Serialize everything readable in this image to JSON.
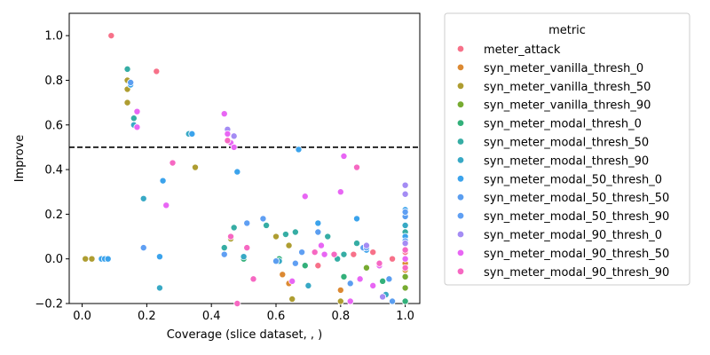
{
  "chart_data": {
    "type": "scatter",
    "xlabel": "Coverage (slice dataset, , )",
    "ylabel": "Improve",
    "xlim": [
      -0.04,
      1.045
    ],
    "ylim": [
      -0.2,
      1.1
    ],
    "xticks": [
      0.0,
      0.2,
      0.4,
      0.6,
      0.8,
      1.0
    ],
    "yticks": [
      -0.2,
      0.0,
      0.2,
      0.4,
      0.6,
      0.8,
      1.0
    ],
    "xtick_labels": [
      "0.0",
      "0.2",
      "0.4",
      "0.6",
      "0.8",
      "1.0"
    ],
    "ytick_labels": [
      "−0.2",
      "0.0",
      "0.2",
      "0.4",
      "0.6",
      "0.8",
      "1.0"
    ],
    "reference_line": {
      "y": 0.5,
      "style": "dashed",
      "color": "#000000"
    },
    "legend": {
      "title": "metric",
      "placement": "outside-right"
    },
    "series": [
      {
        "name": "meter_attack",
        "color": "#f77189",
        "points": [
          [
            0.09,
            1.0
          ],
          [
            0.23,
            0.84
          ],
          [
            0.73,
            -0.03
          ],
          [
            0.84,
            0.02
          ],
          [
            0.9,
            0.03
          ],
          [
            0.96,
            0.0
          ],
          [
            1.0,
            0.03
          ],
          [
            1.0,
            -0.02
          ]
        ]
      },
      {
        "name": "syn_meter_vanilla_thresh_0",
        "color": "#dc8932",
        "points": [
          [
            0.62,
            -0.07
          ],
          [
            0.64,
            -0.11
          ],
          [
            0.8,
            -0.14
          ],
          [
            1.0,
            -0.02
          ],
          [
            1.0,
            -0.05
          ],
          [
            1.0,
            -0.13
          ]
        ]
      },
      {
        "name": "syn_meter_vanilla_thresh_50",
        "color": "#ae9d31",
        "points": [
          [
            0.01,
            0.0
          ],
          [
            0.03,
            0.0
          ],
          [
            0.14,
            0.8
          ],
          [
            0.14,
            0.76
          ],
          [
            0.14,
            0.7
          ],
          [
            0.35,
            0.41
          ],
          [
            0.46,
            0.09
          ],
          [
            0.6,
            0.1
          ],
          [
            0.64,
            0.06
          ],
          [
            0.65,
            -0.18
          ],
          [
            0.8,
            -0.19
          ]
        ]
      },
      {
        "name": "syn_meter_vanilla_thresh_90",
        "color": "#77ab31",
        "points": [
          [
            1.0,
            -0.08
          ],
          [
            1.0,
            -0.13
          ],
          [
            0.88,
            -0.04
          ]
        ]
      },
      {
        "name": "syn_meter_modal_thresh_0",
        "color": "#33b07a",
        "points": [
          [
            0.5,
            0.0
          ],
          [
            0.61,
            0.0
          ],
          [
            0.69,
            -0.03
          ],
          [
            0.81,
            -0.08
          ],
          [
            0.93,
            -0.1
          ],
          [
            1.0,
            -0.19
          ]
        ]
      },
      {
        "name": "syn_meter_modal_thresh_50",
        "color": "#36ada4",
        "points": [
          [
            0.14,
            0.85
          ],
          [
            0.15,
            0.78
          ],
          [
            0.16,
            0.63
          ],
          [
            0.44,
            0.05
          ],
          [
            0.47,
            0.14
          ],
          [
            0.57,
            0.15
          ],
          [
            0.63,
            0.11
          ],
          [
            0.66,
            0.12
          ],
          [
            0.76,
            0.1
          ],
          [
            0.79,
            0.0
          ],
          [
            0.81,
            0.02
          ],
          [
            0.85,
            0.07
          ],
          [
            0.88,
            0.06
          ],
          [
            1.0,
            0.12
          ],
          [
            1.0,
            0.09
          ]
        ]
      },
      {
        "name": "syn_meter_modal_thresh_90",
        "color": "#38a9c5",
        "points": [
          [
            0.16,
            0.6
          ],
          [
            0.19,
            0.27
          ],
          [
            0.24,
            -0.13
          ],
          [
            0.33,
            0.56
          ],
          [
            0.5,
            0.01
          ],
          [
            0.61,
            -0.01
          ],
          [
            0.7,
            -0.12
          ],
          [
            0.87,
            0.05
          ],
          [
            0.94,
            -0.16
          ],
          [
            1.0,
            0.2
          ],
          [
            1.0,
            0.15
          ]
        ]
      },
      {
        "name": "syn_meter_modal_50_thresh_0",
        "color": "#3ba3ec",
        "points": [
          [
            0.06,
            0.0
          ],
          [
            0.07,
            0.0
          ],
          [
            0.08,
            0.0
          ],
          [
            0.15,
            0.78
          ],
          [
            0.24,
            0.01
          ],
          [
            0.25,
            0.35
          ],
          [
            0.34,
            0.56
          ],
          [
            0.48,
            0.39
          ],
          [
            0.67,
            0.49
          ],
          [
            0.73,
            0.16
          ],
          [
            0.85,
            0.18
          ],
          [
            0.88,
            0.04
          ],
          [
            1.0,
            0.22
          ],
          [
            1.0,
            0.1
          ]
        ]
      },
      {
        "name": "syn_meter_modal_50_thresh_50",
        "color": "#5b9ef0",
        "points": [
          [
            0.15,
            0.79
          ],
          [
            0.6,
            -0.01
          ],
          [
            0.73,
            0.12
          ],
          [
            0.83,
            -0.11
          ],
          [
            0.87,
            0.05
          ],
          [
            0.95,
            -0.09
          ],
          [
            0.96,
            -0.19
          ],
          [
            1.0,
            0.19
          ]
        ]
      },
      {
        "name": "syn_meter_modal_50_thresh_90",
        "color": "#5f9ff3",
        "points": [
          [
            0.19,
            0.05
          ],
          [
            0.44,
            0.02
          ],
          [
            0.51,
            0.16
          ],
          [
            0.56,
            0.18
          ],
          [
            0.66,
            -0.02
          ],
          [
            0.68,
            0.03
          ],
          [
            0.88,
            0.05
          ],
          [
            1.0,
            0.21
          ],
          [
            1.0,
            0.08
          ]
        ]
      },
      {
        "name": "syn_meter_modal_90_thresh_0",
        "color": "#a48cf4",
        "points": [
          [
            0.45,
            0.58
          ],
          [
            0.47,
            0.55
          ],
          [
            0.88,
            0.06
          ],
          [
            0.93,
            -0.17
          ],
          [
            1.0,
            0.33
          ],
          [
            1.0,
            0.29
          ],
          [
            1.0,
            0.07
          ]
        ]
      },
      {
        "name": "syn_meter_modal_90_thresh_50",
        "color": "#e866f4",
        "points": [
          [
            0.17,
            0.66
          ],
          [
            0.17,
            0.59
          ],
          [
            0.26,
            0.24
          ],
          [
            0.44,
            0.65
          ],
          [
            0.45,
            0.56
          ],
          [
            0.46,
            0.52
          ],
          [
            0.47,
            0.5
          ],
          [
            0.65,
            -0.1
          ],
          [
            0.69,
            0.28
          ],
          [
            0.74,
            0.06
          ],
          [
            0.75,
            0.02
          ],
          [
            0.8,
            0.3
          ],
          [
            0.81,
            0.46
          ],
          [
            0.83,
            -0.19
          ],
          [
            0.86,
            -0.09
          ],
          [
            0.9,
            -0.12
          ],
          [
            0.92,
            -0.03
          ],
          [
            1.0,
            0.0
          ]
        ]
      },
      {
        "name": "syn_meter_modal_90_thresh_90",
        "color": "#f668c2",
        "points": [
          [
            0.28,
            0.43
          ],
          [
            0.45,
            0.53
          ],
          [
            0.46,
            0.1
          ],
          [
            0.48,
            -0.2
          ],
          [
            0.51,
            0.05
          ],
          [
            0.53,
            -0.09
          ],
          [
            0.72,
            0.03
          ],
          [
            0.78,
            0.02
          ],
          [
            0.85,
            0.41
          ],
          [
            0.92,
            -0.02
          ],
          [
            1.0,
            0.04
          ],
          [
            1.0,
            -0.04
          ]
        ]
      }
    ]
  }
}
